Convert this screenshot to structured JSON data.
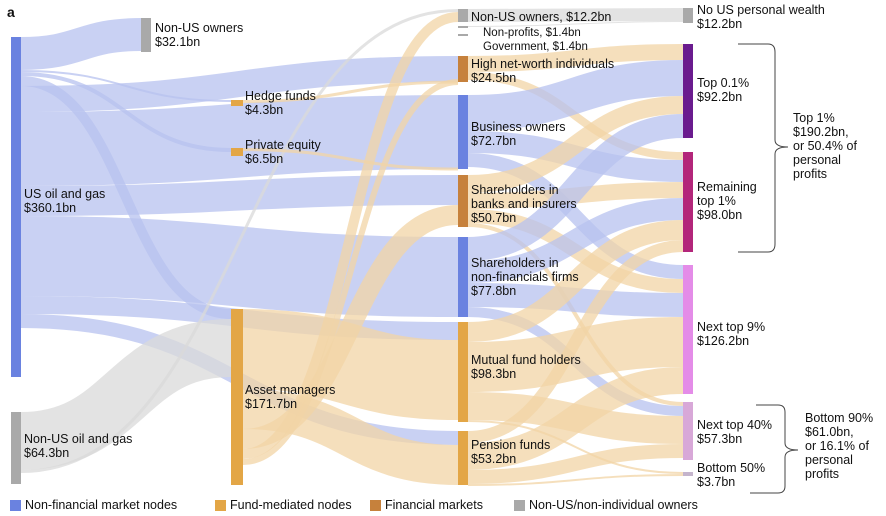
{
  "panel_label": "a",
  "colors": {
    "non_financial": "#6a82e0",
    "fund_mediated": "#e3a646",
    "financial_markets": "#c6813c",
    "non_us": "#a9a9a9",
    "top01": "#6a1b8e",
    "top1_rest": "#b3267a",
    "next9": "#e48ce8",
    "next40": "#d8a8d8",
    "bottom50": "#c4b4cc",
    "flow_blue": "#b7c2ef",
    "flow_orange": "#f1d4a6",
    "flow_grey": "#d9d9d9"
  },
  "nodes": {
    "us_oil_gas": {
      "name": "US oil and gas",
      "value": "$360.1bn"
    },
    "non_us_oil_gas": {
      "name": "Non-US oil and gas",
      "value": "$64.3bn"
    },
    "non_us_owners_left": {
      "name": "Non-US owners",
      "value": "$32.1bn"
    },
    "hedge_funds": {
      "name": "Hedge funds",
      "value": "$4.3bn"
    },
    "private_equity": {
      "name": "Private equity",
      "value": "$6.5bn"
    },
    "asset_managers": {
      "name": "Asset managers",
      "value": "$171.7bn"
    },
    "non_us_owners_mid": {
      "label": "Non-US owners, $12.2bn"
    },
    "non_profits": {
      "label": "Non-profits, $1.4bn"
    },
    "government": {
      "label": "Government, $1.4bn"
    },
    "high_net_worth": {
      "name": "High net-worth individuals",
      "value": "$24.5bn"
    },
    "business_owners": {
      "name": "Business owners",
      "value": "$72.7bn"
    },
    "shareholders_banks": {
      "line1": "Shareholders in",
      "line2": "banks and insurers",
      "value": "$50.7bn"
    },
    "shareholders_nonfin": {
      "line1": "Shareholders in",
      "line2": "non-financials firms",
      "value": "$77.8bn"
    },
    "mutual_fund_holders": {
      "name": "Mutual fund holders",
      "value": "$98.3bn"
    },
    "pension_funds": {
      "name": "Pension funds",
      "value": "$53.2bn"
    },
    "no_us_wealth": {
      "name": "No US personal wealth",
      "value": "$12.2bn"
    },
    "top01": {
      "name": "Top 0.1%",
      "value": "$92.2bn"
    },
    "remaining_top1": {
      "line1": "Remaining",
      "line2": "top 1%",
      "value": "$98.0bn"
    },
    "next_top9": {
      "name": "Next top 9%",
      "value": "$126.2bn"
    },
    "next_top40": {
      "name": "Next top 40%",
      "value": "$57.3bn"
    },
    "bottom50": {
      "name": "Bottom 50%",
      "value": "$3.7bn"
    }
  },
  "brackets": {
    "top1": {
      "lines": [
        "Top 1%",
        "$190.2bn,",
        "or 50.4% of",
        "personal",
        "profits"
      ]
    },
    "bottom90": {
      "lines": [
        "Bottom 90%",
        "$61.0bn,",
        "or 16.1% of",
        "personal",
        "profits"
      ]
    }
  },
  "legend": [
    {
      "label": "Non-financial market nodes",
      "color": "#6a82e0"
    },
    {
      "label": "Fund-mediated nodes",
      "color": "#e3a646"
    },
    {
      "label": "Financial markets",
      "color": "#c6813c"
    },
    {
      "label": "Non-US/non-individual owners",
      "color": "#a9a9a9"
    }
  ]
}
